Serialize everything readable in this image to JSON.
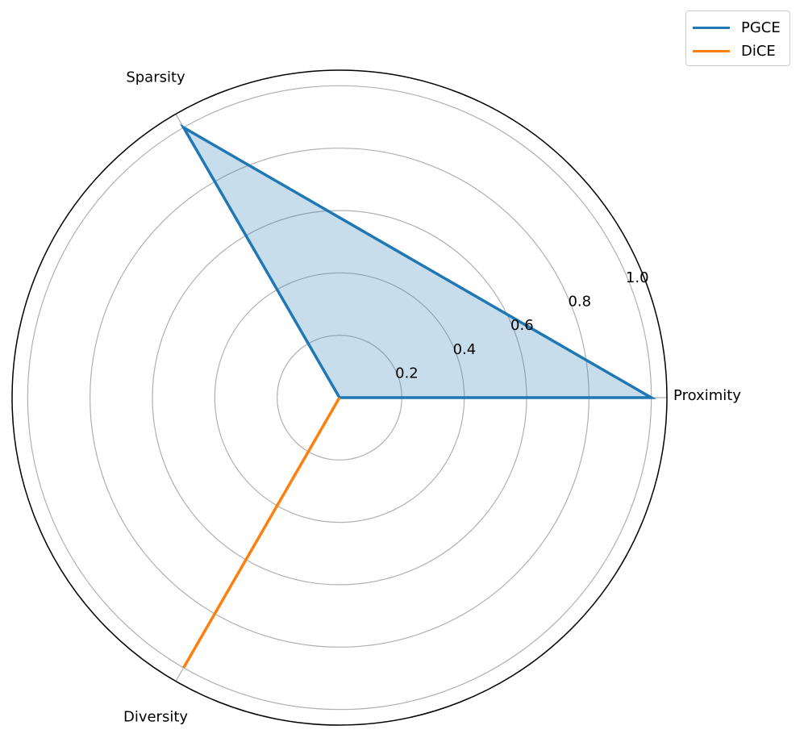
{
  "chart_data": {
    "type": "radar",
    "axes": [
      "Proximity",
      "Sparsity",
      "Diversity"
    ],
    "rmax": 1.05,
    "rticks": [
      0.2,
      0.4,
      0.6,
      0.8,
      1.0
    ],
    "rtick_labels": [
      "0.2",
      "0.4",
      "0.6",
      "0.8",
      "1.0"
    ],
    "grid": true,
    "legend_position": "top-right",
    "series": [
      {
        "name": "PGCE",
        "values": [
          1.0,
          1.0,
          0.0
        ],
        "color": "#1f77b4",
        "fill": true
      },
      {
        "name": "DiCE",
        "values": [
          0.0,
          0.0,
          1.0
        ],
        "color": "#ff7f0e",
        "fill": false
      }
    ]
  }
}
